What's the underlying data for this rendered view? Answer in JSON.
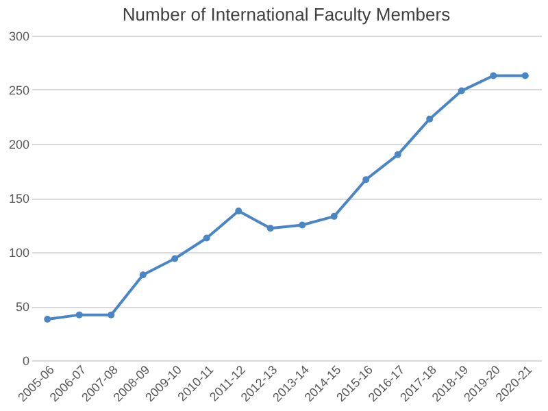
{
  "chart_data": {
    "type": "line",
    "title": "Number of International Faculty Members",
    "categories": [
      "2005-06",
      "2006-07",
      "2007-08",
      "2008-09",
      "2009-10",
      "2010-11",
      "2011-12",
      "2012-13",
      "2013-14",
      "2014-15",
      "2015-16",
      "2016-17",
      "2017-18",
      "2018-19",
      "2019-20",
      "2020-21"
    ],
    "series": [
      {
        "color": "#4a86c6",
        "values": [
          38,
          42,
          42,
          79,
          94,
          113,
          138,
          122,
          125,
          133,
          167,
          190,
          223,
          249,
          263,
          263
        ]
      }
    ],
    "ylim": [
      0,
      300
    ],
    "yticks": [
      0,
      50,
      100,
      150,
      200,
      250,
      300
    ],
    "grid": "y",
    "marker": "circle",
    "legend": false
  }
}
